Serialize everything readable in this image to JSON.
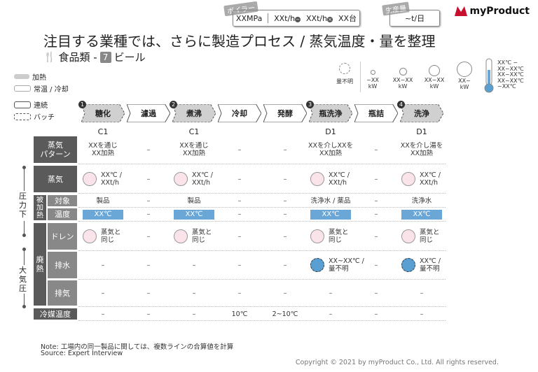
{
  "header": {
    "title": "注目する業種では、さらに製造プロセス / 蒸気温度・量を整理",
    "subtitle_cat": "食品類 - ",
    "subtitle_num": "7",
    "subtitle_item": "ビール",
    "boiler_tag": "ボイラー",
    "boiler_pressure": "XXMPa",
    "boiler_flow1": "XXt/h",
    "boiler_flow2": "XXt/h",
    "boiler_units": "XX台",
    "prod_tag": "生産量",
    "prod_value": "~t/日",
    "logo_text": "myProduct"
  },
  "legend": {
    "heat": "加熱",
    "normal": "常温 / 冷却",
    "continuous": "連続",
    "batch": "バッチ"
  },
  "scale": {
    "unknown": "量不明",
    "s1": "~XX\nkW",
    "s2": "XX~XX\nkW",
    "s3": "XX~XX\nkW",
    "s4": "XX~\nkW",
    "therm": "XX℃ ~\nXX~XX℃\nXX~XX℃\nXX~XX℃\n~XX℃"
  },
  "processes": [
    {
      "label": "糖化",
      "type": "batch",
      "num": "1",
      "code": "C1"
    },
    {
      "label": "濾過",
      "type": "cont",
      "num": "",
      "code": ""
    },
    {
      "label": "煮沸",
      "type": "batch",
      "num": "2",
      "code": "C1"
    },
    {
      "label": "冷却",
      "type": "cont",
      "num": "",
      "code": ""
    },
    {
      "label": "発酵",
      "type": "cont",
      "num": "",
      "code": ""
    },
    {
      "label": "瓶洗浄",
      "type": "batch",
      "num": "3",
      "code": "D1"
    },
    {
      "label": "瓶詰",
      "type": "cont",
      "num": "",
      "code": ""
    },
    {
      "label": "洗浄",
      "type": "batch",
      "num": "4",
      "code": "D1"
    }
  ],
  "rows": {
    "pattern": "蒸気\nパターン",
    "steam": "蒸気",
    "target": "対象",
    "temp": "温度",
    "drain": "ドレン",
    "exhaust": "排水",
    "vent": "排気",
    "coolant": "冷媒温度",
    "heated": "被\n加\n熱",
    "waste": "廃\n熱",
    "pressurized": "圧\n力\n下",
    "atmospheric": "大\n気\n圧"
  },
  "cells": {
    "pattern": [
      "XXを通じ\nXX加熱",
      "–",
      "XXを通じ\nXX加熱",
      "–",
      "–",
      "XXを介しXXを\nXX加熱",
      "–",
      "XXを介し湯を\nXX加熱"
    ],
    "steam": [
      "XX℃ /\nXXt/h",
      "–",
      "XX℃ /\nXXt/h",
      "–",
      "–",
      "XX℃ /\nXXt/h",
      "–",
      "XX℃ /\nXXt/h"
    ],
    "target": [
      "製品",
      "–",
      "製品",
      "–",
      "–",
      "洗浄水 / 薬品",
      "–",
      "洗浄水"
    ],
    "temp": [
      "XX℃",
      "–",
      "XX℃",
      "–",
      "–",
      "XX℃",
      "–",
      "XX℃"
    ],
    "drain": [
      "蒸気と\n同じ",
      "–",
      "蒸気と\n同じ",
      "–",
      "–",
      "蒸気と\n同じ",
      "–",
      "蒸気と\n同じ"
    ],
    "exhaust": [
      "–",
      "–",
      "–",
      "–",
      "–",
      "XX~XX℃ /\n量不明",
      "–",
      "XX℃ /\n量不明"
    ],
    "vent": [
      "–",
      "–",
      "–",
      "–",
      "–",
      "–",
      "–",
      "–"
    ],
    "coolant": [
      "–",
      "–",
      "–",
      "10℃",
      "2~10℃",
      "–",
      "–",
      "–"
    ]
  },
  "notes": {
    "note": "Note: 工場内の同一製品に関しては、複数ラインの合算値を計算",
    "source": "Source: Expert Interview",
    "copyright": "Copyright © 2021 by myProduct Co., Ltd.  All rights reserved."
  }
}
